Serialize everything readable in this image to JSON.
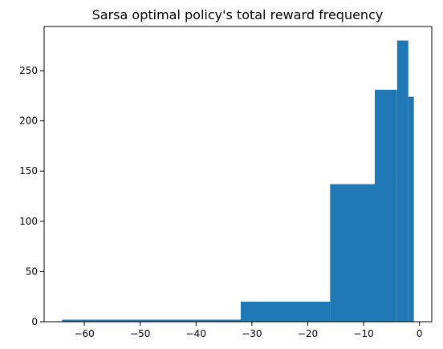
{
  "chart_data": {
    "type": "bar",
    "title": "Sarsa optimal policy's total reward frequency",
    "xlabel": "",
    "ylabel": "",
    "xlim": [
      -67.2,
      2.2
    ],
    "ylim": [
      0,
      294
    ],
    "xticks": [
      -60,
      -50,
      -40,
      -30,
      -20,
      -10,
      0
    ],
    "yticks": [
      0,
      50,
      100,
      150,
      200,
      250
    ],
    "grid": false,
    "bar_color": "#1f77b4",
    "bins": [
      {
        "x0": -64,
        "x1": -32,
        "count": 2
      },
      {
        "x0": -32,
        "x1": -16,
        "count": 20
      },
      {
        "x0": -16,
        "x1": -8,
        "count": 137
      },
      {
        "x0": -8,
        "x1": -4,
        "count": 231
      },
      {
        "x0": -4,
        "x1": -2,
        "count": 280
      },
      {
        "x0": -2,
        "x1": -1,
        "count": 224
      }
    ]
  }
}
